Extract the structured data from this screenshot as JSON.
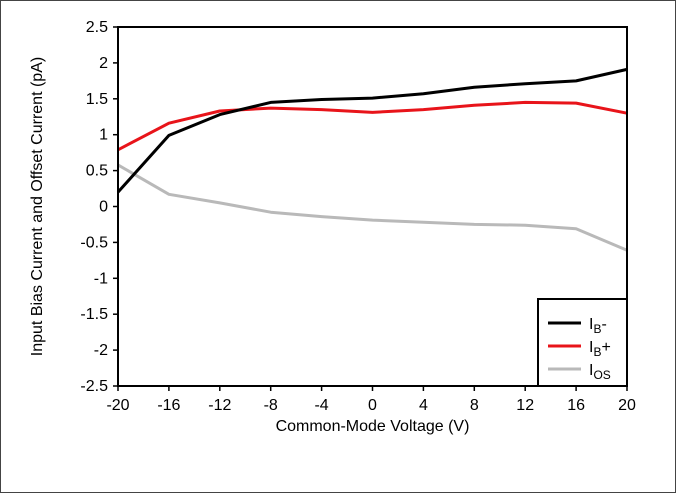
{
  "chart_data": {
    "type": "line",
    "title": "",
    "xlabel": "Common-Mode Voltage (V)",
    "ylabel": "Input Bias Current and Offset Current (pA)",
    "xlim": [
      -20,
      20
    ],
    "ylim": [
      -2.5,
      2.5
    ],
    "x_ticks": [
      -20,
      -16,
      -12,
      -8,
      -4,
      0,
      4,
      8,
      12,
      16,
      20
    ],
    "y_ticks": [
      -2.5,
      -2,
      -1.5,
      -1,
      -0.5,
      0,
      0.5,
      1,
      1.5,
      2,
      2.5
    ],
    "x_tick_labels": [
      "-20",
      "-16",
      "-12",
      "-8",
      "-4",
      "0",
      "4",
      "8",
      "12",
      "16",
      "20"
    ],
    "y_tick_labels": [
      "-2.5",
      "-2",
      "-1.5",
      "-1",
      "-0.5",
      "0",
      "0.5",
      "1",
      "1.5",
      "2",
      "2.5"
    ],
    "grid": false,
    "legend_position": "bottom-right",
    "x": [
      -20,
      -16,
      -12,
      -8,
      -4,
      0,
      4,
      8,
      12,
      16,
      20
    ],
    "series": [
      {
        "name": "IB-",
        "label_main": "I",
        "label_sub": "B",
        "label_suffix": "-",
        "color": "#000000",
        "values": [
          0.2,
          0.99,
          1.28,
          1.45,
          1.49,
          1.51,
          1.57,
          1.66,
          1.71,
          1.75,
          1.91
        ]
      },
      {
        "name": "IB+",
        "label_main": "I",
        "label_sub": "B",
        "label_suffix": "+",
        "color": "#e8141a",
        "values": [
          0.79,
          1.16,
          1.33,
          1.37,
          1.35,
          1.31,
          1.35,
          1.41,
          1.45,
          1.44,
          1.3
        ]
      },
      {
        "name": "IOS",
        "label_main": "I",
        "label_sub": "OS",
        "label_suffix": "",
        "color": "#b9b9b9",
        "values": [
          0.58,
          0.17,
          0.05,
          -0.08,
          -0.14,
          -0.19,
          -0.22,
          -0.25,
          -0.26,
          -0.31,
          -0.61
        ]
      }
    ]
  }
}
